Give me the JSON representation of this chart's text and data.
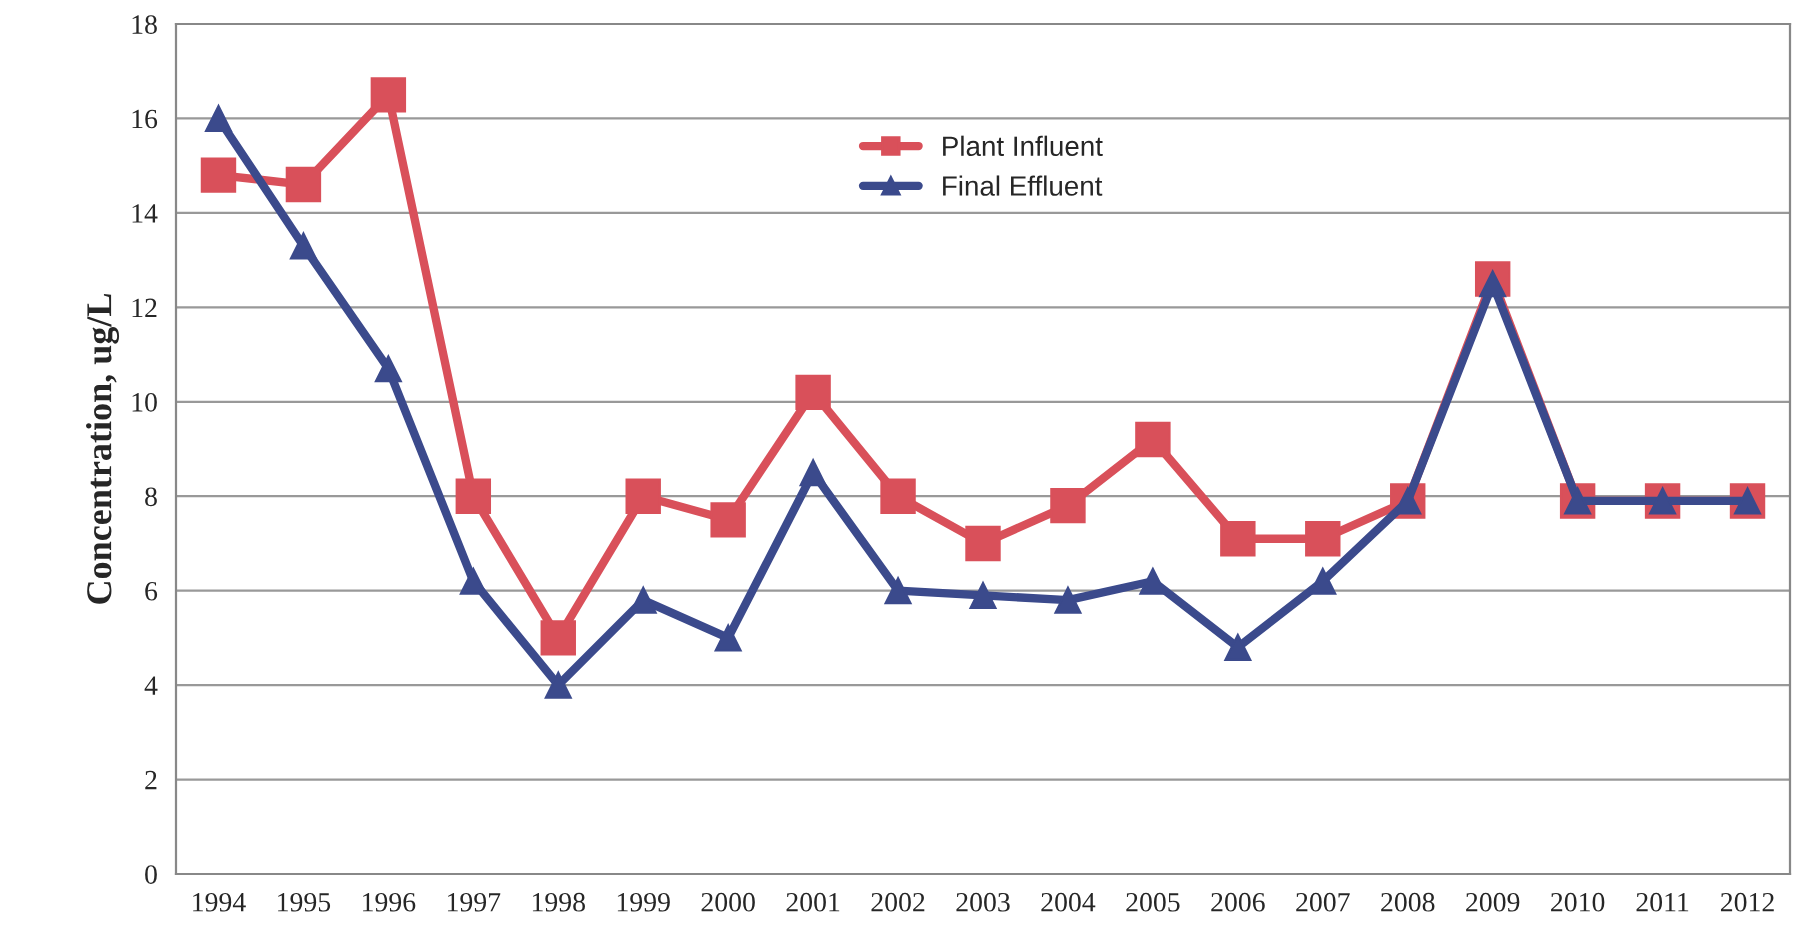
{
  "chart_data": {
    "type": "line",
    "ylabel": "Concentration, ug/L",
    "categories": [
      "1994",
      "1995",
      "1996",
      "1997",
      "1998",
      "1999",
      "2000",
      "2001",
      "2002",
      "2003",
      "2004",
      "2005",
      "2006",
      "2007",
      "2008",
      "2009",
      "2010",
      "2011",
      "2012"
    ],
    "series": [
      {
        "name": "Plant Influent",
        "color": "#d9505a",
        "marker": "square",
        "values": [
          14.8,
          14.6,
          16.5,
          8,
          5,
          8,
          7.5,
          10.2,
          8,
          7,
          7.8,
          9.2,
          7.1,
          7.1,
          7.9,
          12.6,
          7.9,
          7.9,
          7.9
        ]
      },
      {
        "name": "Final Effluent",
        "color": "#3b4a8c",
        "marker": "triangle",
        "values": [
          16,
          13.3,
          10.7,
          6.2,
          4,
          5.8,
          5,
          8.5,
          6,
          5.9,
          5.8,
          6.2,
          4.8,
          6.2,
          7.9,
          12.5,
          7.9,
          7.9,
          7.9
        ]
      }
    ],
    "ylim": [
      0,
      18
    ],
    "yticks": [
      0,
      2,
      4,
      6,
      8,
      10,
      12,
      14,
      16,
      18
    ],
    "grid": "y",
    "legend": "top",
    "line_style": "solid"
  }
}
